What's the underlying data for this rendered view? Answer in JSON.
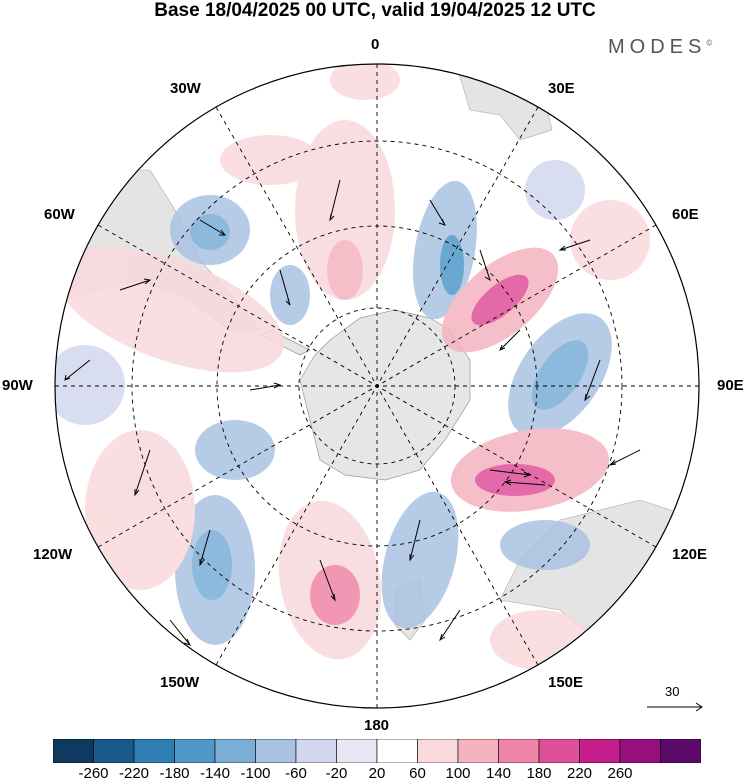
{
  "title": "Base 18/04/2025 00 UTC, valid 19/04/2025 12 UTC",
  "brand": "MODES",
  "brand_mark": "©",
  "longitude_labels": {
    "n0": "0",
    "n30e": "30E",
    "n60e": "60E",
    "n90e": "90E",
    "n120e": "120E",
    "n150e": "150E",
    "n180": "180",
    "n150w": "150W",
    "n120w": "120W",
    "n90w": "90W",
    "n60w": "60W",
    "n30w": "30W"
  },
  "reference_vector": "30",
  "colorbar": {
    "ticks": [
      "-260",
      "-220",
      "-180",
      "-140",
      "-100",
      "-60",
      "-20",
      "20",
      "60",
      "100",
      "140",
      "180",
      "220",
      "260"
    ],
    "colors": [
      "#0d3a5e",
      "#1a5a8a",
      "#2e7db3",
      "#4f98c9",
      "#7aaed6",
      "#a9c2e2",
      "#d3d7ee",
      "#ebe6f3",
      "#ffffff",
      "#f9d9dc",
      "#f4b3bf",
      "#ef86a8",
      "#e0509a",
      "#c51e8a",
      "#95107d",
      "#5b0a6a"
    ]
  },
  "chart_data": {
    "type": "map",
    "projection": "south polar stereographic",
    "field": "anomaly shading with wind vectors",
    "anomaly_features": [
      {
        "sign": "negative",
        "sector": "60E-90E",
        "level": "-140"
      },
      {
        "sign": "negative",
        "sector": "0-30E",
        "level": "-140"
      },
      {
        "sign": "negative",
        "sector": "45W",
        "level": "-140"
      },
      {
        "sign": "negative",
        "sector": "90W",
        "level": "-100"
      },
      {
        "sign": "negative",
        "sector": "135W",
        "level": "-140"
      },
      {
        "sign": "negative",
        "sector": "165E",
        "level": "-140"
      },
      {
        "sign": "negative",
        "sector": "120E",
        "level": "-140"
      },
      {
        "sign": "positive",
        "sector": "30E-45E",
        "level": "180"
      },
      {
        "sign": "positive",
        "sector": "105E",
        "level": "180"
      },
      {
        "sign": "positive",
        "sector": "160W",
        "level": "140"
      },
      {
        "sign": "positive",
        "sector": "0-15W",
        "level": "100"
      }
    ]
  }
}
